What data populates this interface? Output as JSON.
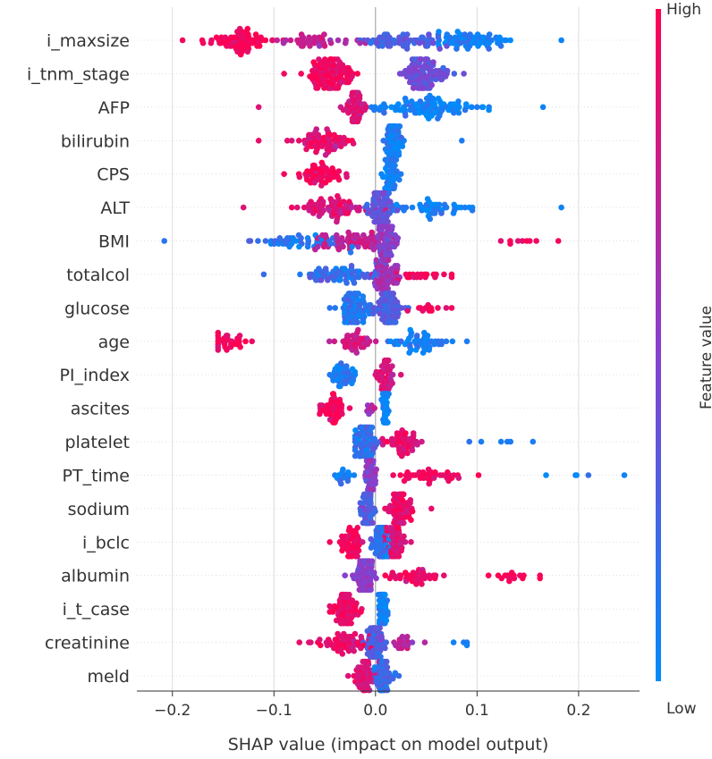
{
  "chart_data": {
    "type": "scatter",
    "subtype": "shap-beeswarm",
    "title": "",
    "xlabel": "SHAP value (impact on model output)",
    "ylabel": "",
    "xlim": [
      -0.235,
      0.26
    ],
    "x_ticks": [
      {
        "value": -0.2,
        "label": "−0.2"
      },
      {
        "value": -0.1,
        "label": "−0.1"
      },
      {
        "value": 0.0,
        "label": "0.0"
      },
      {
        "value": 0.1,
        "label": "0.1"
      },
      {
        "value": 0.2,
        "label": "0.2"
      }
    ],
    "grid": "vertical",
    "colorbar": {
      "title": "Feature value",
      "high_label": "High",
      "low_label": "Low",
      "high_color": "#ff0052",
      "low_color": "#008bfb"
    },
    "features": [
      {
        "name": "i_maxsize",
        "clusters": [
          {
            "center": -0.135,
            "spread": 0.03,
            "n": 70,
            "value": 0.95
          },
          {
            "center": -0.06,
            "spread": 0.035,
            "n": 40,
            "value": 0.7
          },
          {
            "center": 0.03,
            "spread": 0.035,
            "n": 60,
            "value": 0.3
          },
          {
            "center": 0.095,
            "spread": 0.035,
            "n": 70,
            "value": 0.05
          }
        ],
        "min": -0.19,
        "max": 0.183
      },
      {
        "name": "i_tnm_stage",
        "clusters": [
          {
            "center": -0.045,
            "spread": 0.02,
            "n": 110,
            "value": 0.95
          },
          {
            "center": 0.048,
            "spread": 0.02,
            "n": 110,
            "value": 0.4
          }
        ],
        "min": -0.09,
        "max": 0.087
      },
      {
        "name": "AFP",
        "clusters": [
          {
            "center": -0.02,
            "spread": 0.01,
            "n": 55,
            "value": 0.85
          },
          {
            "center": 0.05,
            "spread": 0.045,
            "n": 100,
            "value": 0.05
          }
        ],
        "min": -0.115,
        "max": 0.165
      },
      {
        "name": "bilirubin",
        "clusters": [
          {
            "center": -0.05,
            "spread": 0.03,
            "n": 70,
            "value": 0.9
          },
          {
            "center": 0.018,
            "spread": 0.008,
            "n": 70,
            "value": 0.1
          }
        ],
        "min": -0.115,
        "max": 0.085
      },
      {
        "name": "CPS",
        "clusters": [
          {
            "center": -0.055,
            "spread": 0.02,
            "n": 55,
            "value": 0.95
          },
          {
            "center": 0.014,
            "spread": 0.006,
            "n": 80,
            "value": 0.1
          }
        ],
        "min": -0.09,
        "max": 0.025
      },
      {
        "name": "ALT",
        "clusters": [
          {
            "center": -0.045,
            "spread": 0.03,
            "n": 70,
            "value": 0.85
          },
          {
            "center": 0.005,
            "spread": 0.012,
            "n": 80,
            "value": 0.35
          },
          {
            "center": 0.06,
            "spread": 0.035,
            "n": 45,
            "value": 0.05
          }
        ],
        "min": -0.13,
        "max": 0.183
      },
      {
        "name": "BMI",
        "clusters": [
          {
            "center": -0.07,
            "spread": 0.045,
            "n": 50,
            "value": 0.15
          },
          {
            "center": -0.02,
            "spread": 0.03,
            "n": 60,
            "value": 0.75
          },
          {
            "center": 0.01,
            "spread": 0.01,
            "n": 60,
            "value": 0.5
          },
          {
            "center": 0.14,
            "spread": 0.02,
            "n": 8,
            "value": 0.95
          }
        ],
        "min": -0.208,
        "max": 0.18
      },
      {
        "name": "totalcol",
        "clusters": [
          {
            "center": -0.04,
            "spread": 0.035,
            "n": 70,
            "value": 0.2
          },
          {
            "center": 0.01,
            "spread": 0.01,
            "n": 70,
            "value": 0.6
          },
          {
            "center": 0.045,
            "spread": 0.02,
            "n": 20,
            "value": 0.95
          }
        ],
        "min": -0.11,
        "max": 0.075
      },
      {
        "name": "glucose",
        "clusters": [
          {
            "center": -0.02,
            "spread": 0.015,
            "n": 80,
            "value": 0.15
          },
          {
            "center": 0.015,
            "spread": 0.012,
            "n": 80,
            "value": 0.3
          },
          {
            "center": 0.05,
            "spread": 0.015,
            "n": 12,
            "value": 0.95
          }
        ],
        "min": -0.045,
        "max": 0.075
      },
      {
        "name": "age",
        "clusters": [
          {
            "center": -0.14,
            "spread": 0.02,
            "n": 30,
            "value": 0.97
          },
          {
            "center": -0.02,
            "spread": 0.015,
            "n": 40,
            "value": 0.8
          },
          {
            "center": 0.04,
            "spread": 0.025,
            "n": 50,
            "value": 0.1
          }
        ],
        "min": -0.155,
        "max": 0.09
      },
      {
        "name": "PI_index",
        "clusters": [
          {
            "center": -0.03,
            "spread": 0.012,
            "n": 40,
            "value": 0.1
          },
          {
            "center": 0.01,
            "spread": 0.007,
            "n": 50,
            "value": 0.85
          }
        ],
        "min": -0.045,
        "max": 0.025
      },
      {
        "name": "ascites",
        "clusters": [
          {
            "center": -0.042,
            "spread": 0.012,
            "n": 45,
            "value": 0.95
          },
          {
            "center": -0.005,
            "spread": 0.006,
            "n": 8,
            "value": 0.6
          },
          {
            "center": 0.01,
            "spread": 0.003,
            "n": 50,
            "value": 0.05
          }
        ],
        "min": -0.055,
        "max": 0.013
      },
      {
        "name": "platelet",
        "clusters": [
          {
            "center": -0.01,
            "spread": 0.012,
            "n": 80,
            "value": 0.2
          },
          {
            "center": 0.025,
            "spread": 0.015,
            "n": 50,
            "value": 0.9
          },
          {
            "center": 0.12,
            "spread": 0.025,
            "n": 5,
            "value": 0.1
          }
        ],
        "min": -0.02,
        "max": 0.155
      },
      {
        "name": "PT_time",
        "clusters": [
          {
            "center": -0.03,
            "spread": 0.01,
            "n": 15,
            "value": 0.1
          },
          {
            "center": -0.005,
            "spread": 0.005,
            "n": 60,
            "value": 0.5
          },
          {
            "center": 0.06,
            "spread": 0.03,
            "n": 40,
            "value": 0.95
          },
          {
            "center": 0.2,
            "spread": 0.03,
            "n": 4,
            "value": 0.05
          }
        ],
        "min": -0.04,
        "max": 0.245
      },
      {
        "name": "sodium",
        "clusters": [
          {
            "center": -0.008,
            "spread": 0.006,
            "n": 70,
            "value": 0.3
          },
          {
            "center": 0.025,
            "spread": 0.012,
            "n": 70,
            "value": 0.9
          }
        ],
        "min": -0.015,
        "max": 0.055
      },
      {
        "name": "i_bclc",
        "clusters": [
          {
            "center": -0.025,
            "spread": 0.012,
            "n": 50,
            "value": 0.95
          },
          {
            "center": 0.005,
            "spread": 0.008,
            "n": 70,
            "value": 0.15
          },
          {
            "center": 0.02,
            "spread": 0.01,
            "n": 50,
            "value": 0.85
          }
        ],
        "min": -0.045,
        "max": 0.035
      },
      {
        "name": "albumin",
        "clusters": [
          {
            "center": -0.01,
            "spread": 0.01,
            "n": 70,
            "value": 0.5
          },
          {
            "center": 0.035,
            "spread": 0.025,
            "n": 40,
            "value": 0.95
          },
          {
            "center": 0.13,
            "spread": 0.025,
            "n": 15,
            "value": 0.95
          }
        ],
        "min": -0.03,
        "max": 0.162
      },
      {
        "name": "i_t_case",
        "clusters": [
          {
            "center": -0.03,
            "spread": 0.012,
            "n": 70,
            "value": 0.95
          },
          {
            "center": 0.007,
            "spread": 0.004,
            "n": 60,
            "value": 0.05
          }
        ],
        "min": -0.045,
        "max": 0.012
      },
      {
        "name": "creatinine",
        "clusters": [
          {
            "center": -0.03,
            "spread": 0.025,
            "n": 60,
            "value": 0.9
          },
          {
            "center": 0.0,
            "spread": 0.008,
            "n": 60,
            "value": 0.3
          },
          {
            "center": 0.03,
            "spread": 0.012,
            "n": 20,
            "value": 0.7
          },
          {
            "center": 0.085,
            "spread": 0.006,
            "n": 3,
            "value": 0.05
          }
        ],
        "min": -0.075,
        "max": 0.09
      },
      {
        "name": "meld",
        "clusters": [
          {
            "center": -0.012,
            "spread": 0.01,
            "n": 50,
            "value": 0.85
          },
          {
            "center": 0.008,
            "spread": 0.008,
            "n": 60,
            "value": 0.2
          }
        ],
        "min": -0.027,
        "max": 0.023
      }
    ]
  }
}
